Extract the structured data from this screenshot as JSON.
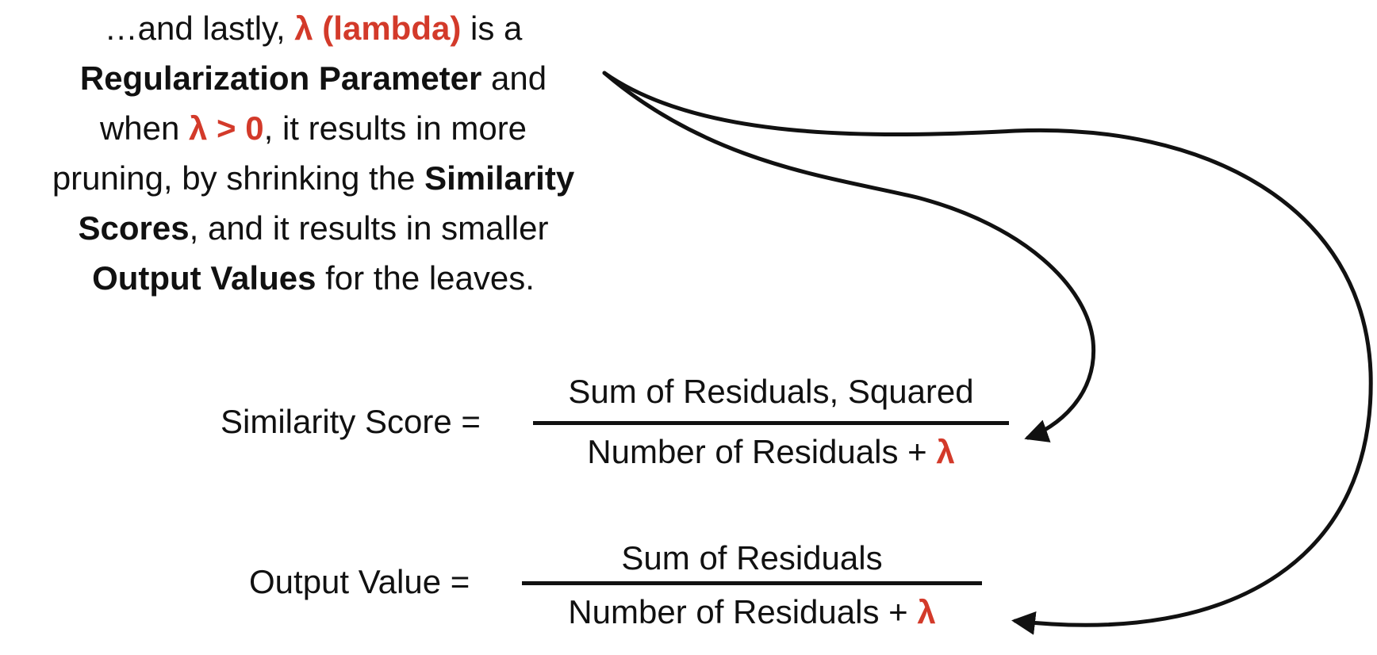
{
  "paragraph": {
    "l1_a": "…and lastly, ",
    "l1_lambda": "λ (lambda)",
    "l1_b": " is a",
    "l2_bold": "Regularization Parameter",
    "l2_b": " and",
    "l3_a": "when ",
    "l3_lambda": "λ > 0",
    "l3_b": ", it results in more",
    "l4_a": "pruning, by shrinking the ",
    "l4_bold": "Similarity",
    "l5_bold": "Scores",
    "l5_b": ", and it results in smaller",
    "l6_bold": "Output Values",
    "l6_b": " for the leaves."
  },
  "similarity_formula": {
    "lhs": "Similarity Score =",
    "numerator": "Sum of Residuals, Squared",
    "denominator": "Number of Residuals + ",
    "lambda": "λ"
  },
  "output_formula": {
    "lhs": "Output Value =",
    "numerator": "Sum of Residuals",
    "denominator": "Number of Residuals + ",
    "lambda": "λ"
  },
  "colors": {
    "accent": "#d33a2a",
    "text": "#111111"
  }
}
